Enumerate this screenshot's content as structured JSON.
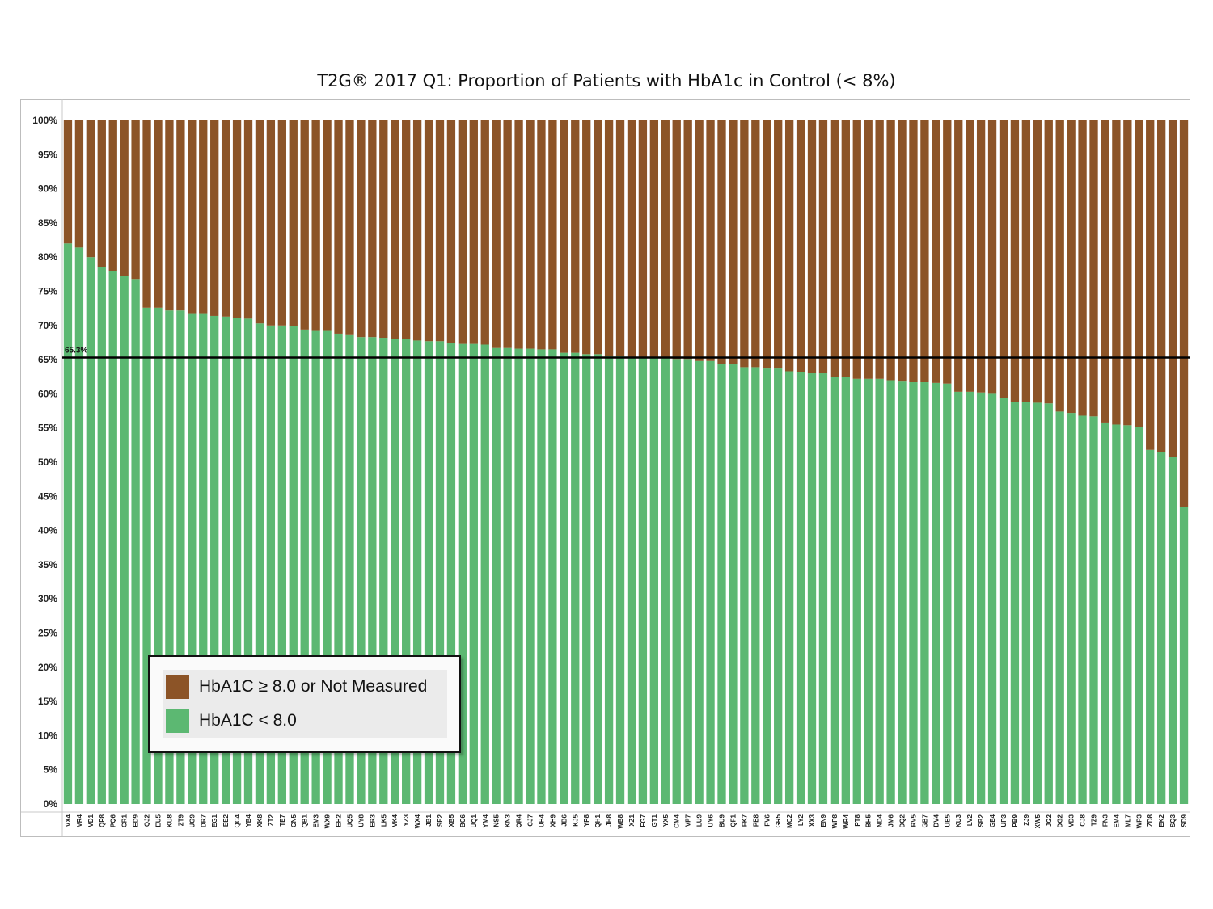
{
  "chart_data": {
    "type": "bar",
    "stacked": true,
    "title": "T2G® 2017 Q1: Proportion of Patients with HbA1c in Control (< 8%)",
    "xlabel": "",
    "ylabel": "",
    "ylim": [
      0,
      100
    ],
    "yticks": [
      "0%",
      "5%",
      "10%",
      "15%",
      "20%",
      "25%",
      "30%",
      "35%",
      "40%",
      "45%",
      "50%",
      "55%",
      "60%",
      "65%",
      "70%",
      "75%",
      "80%",
      "85%",
      "90%",
      "95%",
      "100%"
    ],
    "grid": true,
    "legend_position": "bottom-left",
    "categories": [
      "VX4",
      "VR4",
      "VD1",
      "QP8",
      "PQ6",
      "CR1",
      "ED9",
      "QJ2",
      "EU5",
      "KU8",
      "ZT9",
      "UG9",
      "DR7",
      "EG1",
      "EE2",
      "QC4",
      "YB4",
      "XK8",
      "ZT2",
      "TE7",
      "CN5",
      "QB1",
      "EM3",
      "WX9",
      "EH2",
      "UQ5",
      "UY8",
      "ER3",
      "LK5",
      "VK4",
      "YZ3",
      "WX4",
      "JB1",
      "SE2",
      "XB5",
      "BC6",
      "UQ1",
      "YM4",
      "NS5",
      "KN3",
      "QR4",
      "CJ7",
      "UH4",
      "XH9",
      "JB6",
      "KJ5",
      "YP8",
      "QH1",
      "JH8",
      "WB8",
      "XZ1",
      "FG7",
      "GT1",
      "YX5",
      "CM4",
      "VP7",
      "LU9",
      "UY6",
      "BU9",
      "QF1",
      "FK7",
      "PE8",
      "FV6",
      "GR5",
      "MC2",
      "LY2",
      "XX3",
      "EN9",
      "WP8",
      "WR4",
      "PT8",
      "BH5",
      "ND4",
      "JM6",
      "DQ2",
      "RV5",
      "GB7",
      "DV4",
      "UE5",
      "KU3",
      "LV2",
      "SB2",
      "GE4",
      "UP3",
      "PB9",
      "ZJ9",
      "XW5",
      "JG2",
      "DG2",
      "VD3",
      "CJ8",
      "TZ9",
      "FN3",
      "EM4",
      "ML7",
      "WP3",
      "ZD8",
      "EK2",
      "SQ3",
      "SD9"
    ],
    "series": [
      {
        "name": "HbA1C ≥ 8.0 or Not Measured",
        "color": "#8c5427",
        "values": [
          18.0,
          18.6,
          20.0,
          21.5,
          22.0,
          22.7,
          23.2,
          27.4,
          27.4,
          27.8,
          27.8,
          28.2,
          28.2,
          28.6,
          28.7,
          28.9,
          29.0,
          29.7,
          30.0,
          30.0,
          30.1,
          30.6,
          30.8,
          30.8,
          31.2,
          31.3,
          31.7,
          31.7,
          31.8,
          32.0,
          32.0,
          32.2,
          32.3,
          32.3,
          32.6,
          32.7,
          32.7,
          32.8,
          33.3,
          33.3,
          33.4,
          33.4,
          33.5,
          33.5,
          34.0,
          34.0,
          34.2,
          34.2,
          34.4,
          34.5,
          34.7,
          34.7,
          34.8,
          34.8,
          34.9,
          34.9,
          35.2,
          35.2,
          35.6,
          35.7,
          36.1,
          36.1,
          36.3,
          36.3,
          36.7,
          36.8,
          37.0,
          37.0,
          37.5,
          37.5,
          37.8,
          37.8,
          37.8,
          38.0,
          38.2,
          38.3,
          38.3,
          38.4,
          38.5,
          39.7,
          39.7,
          39.8,
          40.0,
          40.6,
          41.2,
          41.2,
          41.3,
          41.4,
          42.6,
          42.8,
          43.2,
          43.3,
          44.2,
          44.5,
          44.6,
          44.9,
          48.2,
          48.5,
          49.2,
          56.5
        ]
      },
      {
        "name": "HbA1C < 8.0",
        "color": "#5cb872",
        "values": [
          82.0,
          81.4,
          80.0,
          78.5,
          78.0,
          77.3,
          76.8,
          72.6,
          72.6,
          72.2,
          72.2,
          71.8,
          71.8,
          71.4,
          71.3,
          71.1,
          71.0,
          70.3,
          70.0,
          70.0,
          69.9,
          69.4,
          69.2,
          69.2,
          68.8,
          68.7,
          68.3,
          68.3,
          68.2,
          68.0,
          68.0,
          67.8,
          67.7,
          67.7,
          67.4,
          67.3,
          67.3,
          67.2,
          66.7,
          66.7,
          66.6,
          66.6,
          66.5,
          66.5,
          66.0,
          66.0,
          65.8,
          65.8,
          65.6,
          65.5,
          65.3,
          65.3,
          65.2,
          65.2,
          65.1,
          65.1,
          64.8,
          64.8,
          64.4,
          64.3,
          63.9,
          63.9,
          63.7,
          63.7,
          63.3,
          63.2,
          63.0,
          63.0,
          62.5,
          62.5,
          62.2,
          62.2,
          62.2,
          62.0,
          61.8,
          61.7,
          61.7,
          61.6,
          61.5,
          60.3,
          60.3,
          60.2,
          60.0,
          59.4,
          58.8,
          58.8,
          58.7,
          58.6,
          57.4,
          57.2,
          56.8,
          56.7,
          55.8,
          55.5,
          55.4,
          55.1,
          51.8,
          51.5,
          50.8,
          43.5
        ]
      }
    ],
    "reference_line": {
      "value": 65.3,
      "label": "65.3%",
      "color": "#000000"
    }
  }
}
